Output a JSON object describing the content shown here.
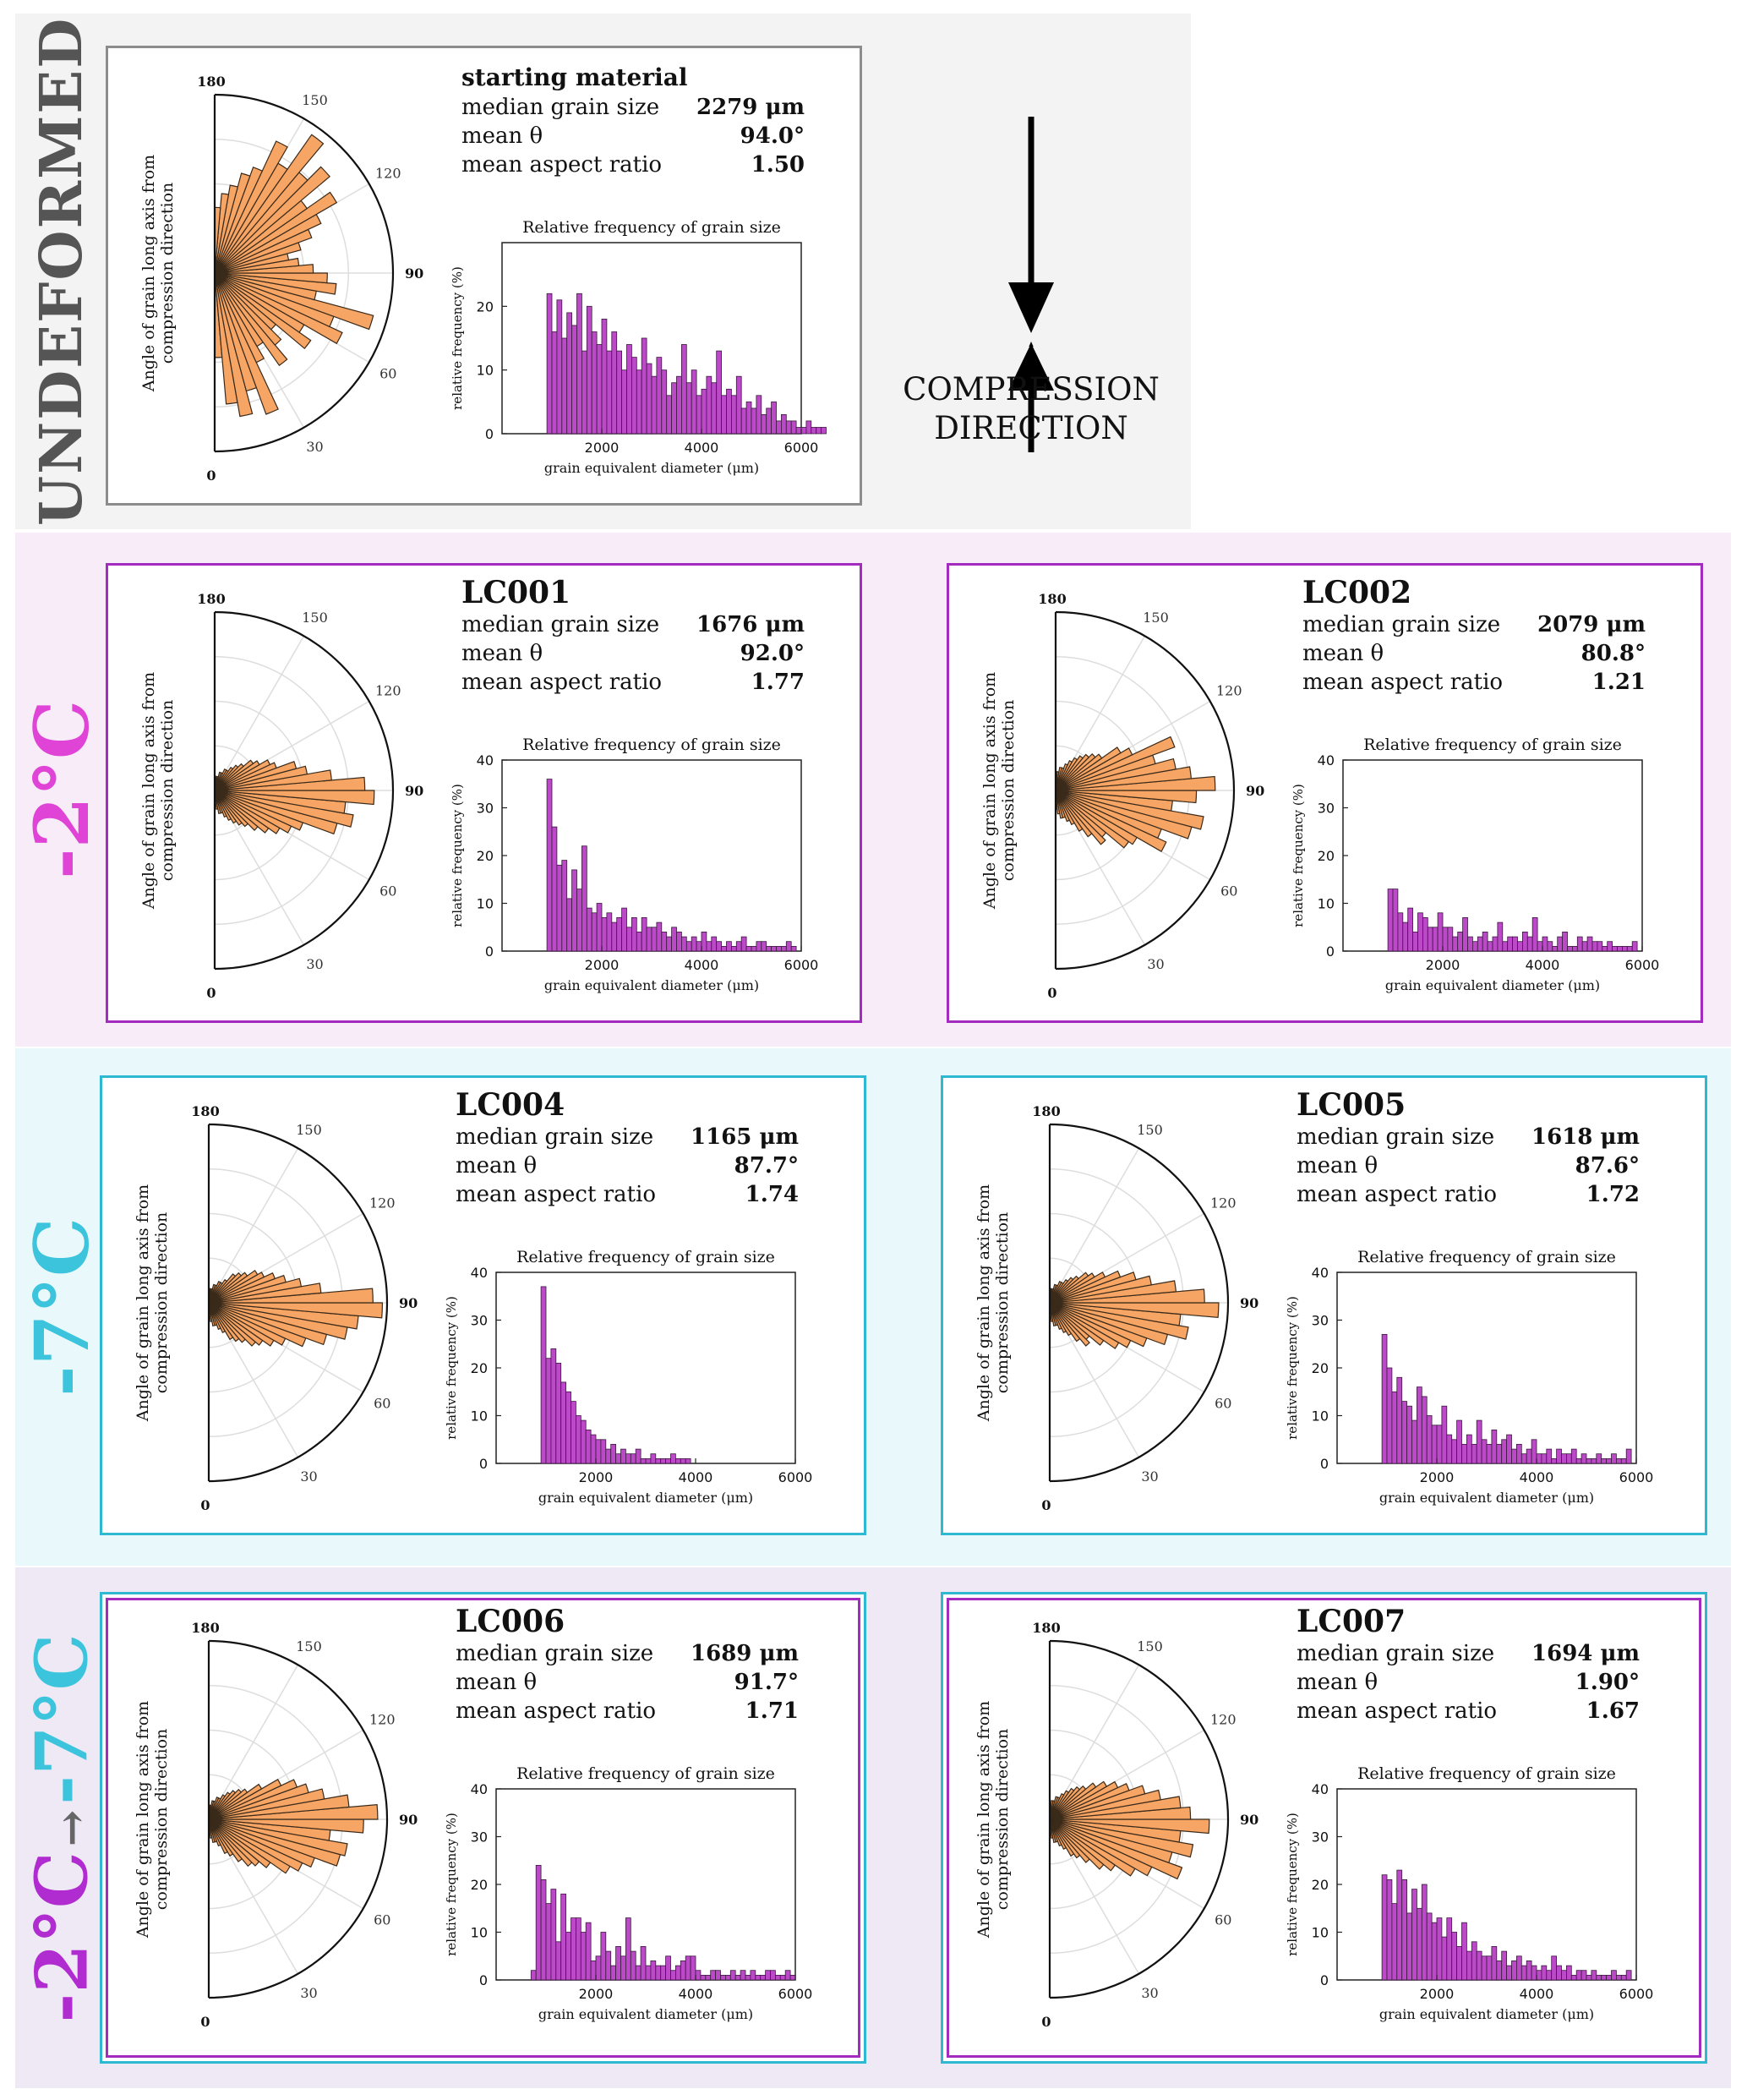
{
  "colors": {
    "rose": "#f6a564",
    "rose_stroke": "#3a2a1a",
    "hist": "#bb49c8",
    "hist_stroke": "#3a1a3d",
    "band_warm": "#f8ecf8",
    "band_cold": "#e9f8fb",
    "band_cycle": "#efe9f6",
    "band_undeformed": "#f3f3f3",
    "magenta": "#a42bbf",
    "cyan": "#2fb8d2",
    "gray": "#8c8c8c"
  },
  "bands": [
    {
      "id": "undeformed",
      "label": "UNDEFORMED"
    },
    {
      "id": "warm",
      "label": "-2°C"
    },
    {
      "id": "cold",
      "label": "-7°C"
    },
    {
      "id": "cycle",
      "label_a": "-2°C",
      "label_arrow": "→",
      "label_b": "-7°C"
    }
  ],
  "compression": {
    "label_line1": "COMPRESSION",
    "label_line2": "DIRECTION"
  },
  "chart_data": [
    {
      "id": "starting",
      "title": "starting material",
      "stats": {
        "median_label": "median grain size",
        "median_value": "2279 μm",
        "theta_label": "mean θ",
        "theta_value": "94.0°",
        "aspect_label": "mean aspect ratio",
        "aspect_value": "1.50"
      },
      "rose": {
        "type": "polar-bar",
        "ylabel_1": "Angle of grain long axis from",
        "ylabel_2": "compression direction",
        "ticks": [
          "0",
          "30",
          "60",
          "90",
          "120",
          "150",
          "180"
        ],
        "max": 0.38,
        "values": [
          0.18,
          0.28,
          0.31,
          0.26,
          0.32,
          0.21,
          0.18,
          0.24,
          0.2,
          0.17,
          0.25,
          0.22,
          0.3,
          0.27,
          0.35,
          0.22,
          0.26,
          0.24,
          0.21,
          0.18,
          0.16,
          0.19,
          0.22,
          0.25,
          0.3,
          0.24,
          0.32,
          0.28,
          0.36,
          0.27,
          0.31,
          0.24,
          0.22,
          0.19,
          0.17,
          0.14
        ]
      },
      "hist": {
        "type": "bar",
        "title": "Relative frequency of grain size",
        "xlabel": "grain equivalent diameter (μm)",
        "ylabel": "relative frequency (%)",
        "xlim": [
          0,
          6000
        ],
        "xticks": [
          2000,
          4000,
          6000
        ],
        "yticks": [
          0,
          10,
          20
        ],
        "ymax": 30,
        "bin_start": 900,
        "bin_width": 100,
        "values": [
          22,
          16,
          21,
          15,
          19,
          17,
          22,
          13,
          20,
          16,
          14,
          18,
          13,
          16,
          13,
          10,
          14,
          12,
          10,
          15,
          11,
          9,
          12,
          10,
          6,
          8,
          9,
          14,
          8,
          10,
          6,
          7,
          9,
          8,
          13,
          6,
          7,
          6,
          9,
          4,
          5,
          4,
          6,
          3,
          4,
          5,
          2,
          3,
          2,
          2,
          1,
          1,
          2,
          1,
          1,
          1
        ]
      }
    },
    {
      "id": "LC001",
      "title": "LC001",
      "stats": {
        "median_label": "median grain size",
        "median_value": "1676 μm",
        "theta_label": "mean θ",
        "theta_value": "92.0°",
        "aspect_label": "mean aspect ratio",
        "aspect_value": "1.77"
      },
      "rose": {
        "type": "polar-bar",
        "ylabel_1": "Angle of grain long axis from",
        "ylabel_2": "compression direction",
        "ticks": [
          "0",
          "30",
          "60",
          "90",
          "120",
          "150",
          "180"
        ],
        "max": 0.38,
        "values": [
          0.03,
          0.04,
          0.05,
          0.05,
          0.06,
          0.07,
          0.08,
          0.09,
          0.1,
          0.12,
          0.14,
          0.16,
          0.18,
          0.2,
          0.27,
          0.3,
          0.28,
          0.34,
          0.32,
          0.25,
          0.2,
          0.18,
          0.14,
          0.13,
          0.11,
          0.1,
          0.08,
          0.07,
          0.06,
          0.05,
          0.05,
          0.04,
          0.04,
          0.03,
          0.03,
          0.03
        ]
      },
      "hist": {
        "type": "bar",
        "title": "Relative frequency of grain size",
        "xlabel": "grain equivalent diameter (μm)",
        "ylabel": "relative frequency (%)",
        "xlim": [
          0,
          6000
        ],
        "xticks": [
          2000,
          4000,
          6000
        ],
        "yticks": [
          0,
          10,
          20,
          30,
          40
        ],
        "ymax": 40,
        "bin_start": 900,
        "bin_width": 100,
        "values": [
          36,
          26,
          18,
          19,
          11,
          17,
          13,
          22,
          9,
          8,
          10,
          7,
          8,
          6,
          7,
          9,
          5,
          7,
          4,
          7,
          5,
          5,
          6,
          4,
          3,
          5,
          4,
          3,
          2,
          3,
          2,
          4,
          2,
          3,
          2,
          1,
          2,
          1,
          2,
          3,
          1,
          1,
          2,
          2,
          1,
          1,
          1,
          1,
          2,
          1
        ]
      }
    },
    {
      "id": "LC002",
      "title": "LC002",
      "stats": {
        "median_label": "median grain size",
        "median_value": "2079 μm",
        "theta_label": "mean θ",
        "theta_value": "80.8°",
        "aspect_label": "mean aspect ratio",
        "aspect_value": "1.21"
      },
      "rose": {
        "type": "polar-bar",
        "ylabel_1": "Angle of grain long axis from",
        "ylabel_2": "compression direction",
        "ticks": [
          "0",
          "30",
          "60",
          "90",
          "120",
          "150",
          "180"
        ],
        "max": 0.38,
        "values": [
          0.04,
          0.05,
          0.06,
          0.06,
          0.07,
          0.08,
          0.1,
          0.12,
          0.15,
          0.14,
          0.19,
          0.2,
          0.26,
          0.24,
          0.3,
          0.32,
          0.25,
          0.3,
          0.34,
          0.29,
          0.26,
          0.22,
          0.27,
          0.18,
          0.16,
          0.12,
          0.11,
          0.1,
          0.09,
          0.08,
          0.07,
          0.06,
          0.05,
          0.05,
          0.04,
          0.04
        ]
      },
      "hist": {
        "type": "bar",
        "title": "Relative frequency of grain size",
        "xlabel": "grain equivalent diameter (μm)",
        "ylabel": "relative frequency (%)",
        "xlim": [
          0,
          6000
        ],
        "xticks": [
          2000,
          4000,
          6000
        ],
        "yticks": [
          0,
          10,
          20,
          30,
          40
        ],
        "ymax": 40,
        "bin_start": 900,
        "bin_width": 100,
        "values": [
          13,
          13,
          8,
          6,
          9,
          4,
          8,
          7,
          5,
          5,
          8,
          5,
          5,
          3,
          4,
          7,
          3,
          2,
          3,
          4,
          2,
          3,
          6,
          2,
          3,
          3,
          2,
          4,
          3,
          7,
          2,
          3,
          2,
          1,
          3,
          4,
          1,
          1,
          3,
          2,
          3,
          2,
          2,
          1,
          2,
          1,
          1,
          1,
          1,
          2
        ]
      }
    },
    {
      "id": "LC004",
      "title": "LC004",
      "stats": {
        "median_label": "median grain size",
        "median_value": "1165 μm",
        "theta_label": "mean θ",
        "theta_value": "87.7°",
        "aspect_label": "mean aspect ratio",
        "aspect_value": "1.74"
      },
      "rose": {
        "type": "polar-bar",
        "ylabel_1": "Angle of grain long axis from",
        "ylabel_2": "compression direction",
        "ticks": [
          "0",
          "30",
          "60",
          "90",
          "120",
          "150",
          "180"
        ],
        "max": 0.38,
        "values": [
          0.03,
          0.04,
          0.05,
          0.05,
          0.06,
          0.07,
          0.09,
          0.1,
          0.11,
          0.13,
          0.14,
          0.16,
          0.18,
          0.22,
          0.26,
          0.3,
          0.32,
          0.37,
          0.35,
          0.24,
          0.2,
          0.17,
          0.15,
          0.13,
          0.12,
          0.1,
          0.09,
          0.08,
          0.06,
          0.05,
          0.05,
          0.04,
          0.04,
          0.03,
          0.03,
          0.03
        ]
      },
      "hist": {
        "type": "bar",
        "title": "Relative frequency of grain size",
        "xlabel": "grain equivalent diameter (μm)",
        "ylabel": "relative frequency (%)",
        "xlim": [
          0,
          6000
        ],
        "xticks": [
          2000,
          4000,
          6000
        ],
        "yticks": [
          0,
          10,
          20,
          30,
          40
        ],
        "ymax": 40,
        "bin_start": 900,
        "bin_width": 100,
        "values": [
          37,
          22,
          24,
          21,
          17,
          15,
          13,
          10,
          9,
          7,
          6,
          5,
          5,
          3,
          4,
          2,
          3,
          2,
          2,
          3,
          1,
          1,
          2,
          1,
          1,
          1,
          2,
          1,
          1,
          1
        ]
      }
    },
    {
      "id": "LC005",
      "title": "LC005",
      "stats": {
        "median_label": "median grain size",
        "median_value": "1618 μm",
        "theta_label": "mean θ",
        "theta_value": "87.6°",
        "aspect_label": "mean aspect ratio",
        "aspect_value": "1.72"
      },
      "rose": {
        "type": "polar-bar",
        "ylabel_1": "Angle of grain long axis from",
        "ylabel_2": "compression direction",
        "ticks": [
          "0",
          "30",
          "60",
          "90",
          "120",
          "150",
          "180"
        ],
        "max": 0.38,
        "values": [
          0.03,
          0.04,
          0.05,
          0.05,
          0.06,
          0.07,
          0.08,
          0.1,
          0.12,
          0.11,
          0.14,
          0.17,
          0.19,
          0.22,
          0.26,
          0.3,
          0.28,
          0.36,
          0.33,
          0.27,
          0.22,
          0.19,
          0.16,
          0.13,
          0.11,
          0.1,
          0.08,
          0.07,
          0.06,
          0.05,
          0.05,
          0.04,
          0.04,
          0.03,
          0.03,
          0.03
        ]
      },
      "hist": {
        "type": "bar",
        "title": "Relative frequency of grain size",
        "xlabel": "grain equivalent diameter (μm)",
        "ylabel": "relative frequency (%)",
        "xlim": [
          0,
          6000
        ],
        "xticks": [
          2000,
          4000,
          6000
        ],
        "yticks": [
          0,
          10,
          20,
          30,
          40
        ],
        "ymax": 40,
        "bin_start": 900,
        "bin_width": 100,
        "values": [
          27,
          20,
          15,
          18,
          13,
          12,
          9,
          16,
          14,
          10,
          8,
          8,
          12,
          6,
          5,
          9,
          4,
          6,
          4,
          9,
          5,
          4,
          7,
          4,
          5,
          6,
          3,
          4,
          2,
          3,
          5,
          2,
          2,
          3,
          1,
          3,
          2,
          2,
          3,
          1,
          2,
          1,
          1,
          2,
          1,
          1,
          2,
          1,
          1,
          3
        ]
      }
    },
    {
      "id": "LC006",
      "title": "LC006",
      "stats": {
        "median_label": "median grain size",
        "median_value": "1689 μm",
        "theta_label": "mean θ",
        "theta_value": "91.7°",
        "aspect_label": "mean aspect ratio",
        "aspect_value": "1.71"
      },
      "rose": {
        "type": "polar-bar",
        "ylabel_1": "Angle of grain long axis from",
        "ylabel_2": "compression direction",
        "ticks": [
          "0",
          "30",
          "60",
          "90",
          "120",
          "150",
          "180"
        ],
        "max": 0.38,
        "values": [
          0.03,
          0.04,
          0.05,
          0.05,
          0.06,
          0.08,
          0.09,
          0.11,
          0.13,
          0.14,
          0.16,
          0.2,
          0.22,
          0.24,
          0.29,
          0.3,
          0.26,
          0.33,
          0.36,
          0.3,
          0.25,
          0.22,
          0.2,
          0.17,
          0.13,
          0.1,
          0.09,
          0.08,
          0.07,
          0.06,
          0.05,
          0.05,
          0.04,
          0.04,
          0.03,
          0.03
        ]
      },
      "hist": {
        "type": "bar",
        "title": "Relative frequency of grain size",
        "xlabel": "grain equivalent diameter (μm)",
        "ylabel": "relative frequency (%)",
        "xlim": [
          0,
          6000
        ],
        "xticks": [
          2000,
          4000,
          6000
        ],
        "yticks": [
          0,
          10,
          20,
          30,
          40
        ],
        "ymax": 40,
        "bin_start": 700,
        "bin_width": 100,
        "values": [
          2,
          24,
          21,
          16,
          19,
          8,
          18,
          10,
          13,
          13,
          10,
          12,
          4,
          5,
          10,
          6,
          3,
          7,
          5,
          13,
          6,
          3,
          7,
          3,
          4,
          3,
          3,
          5,
          2,
          3,
          4,
          5,
          5,
          2,
          1,
          1,
          2,
          2,
          1,
          1,
          2,
          1,
          2,
          1,
          2,
          1,
          1,
          2,
          2,
          1,
          1,
          2,
          1
        ]
      }
    },
    {
      "id": "LC007",
      "title": "LC007",
      "stats": {
        "median_label": "median grain size",
        "median_value": "1694 μm",
        "theta_label": "mean θ",
        "theta_value": "1.90°",
        "aspect_label": "mean aspect ratio",
        "aspect_value": "1.67"
      },
      "rose": {
        "type": "polar-bar",
        "ylabel_1": "Angle of grain long axis from",
        "ylabel_2": "compression direction",
        "ticks": [
          "0",
          "30",
          "60",
          "90",
          "120",
          "150",
          "180"
        ],
        "max": 0.38,
        "values": [
          0.03,
          0.04,
          0.05,
          0.05,
          0.06,
          0.07,
          0.09,
          0.1,
          0.12,
          0.15,
          0.17,
          0.21,
          0.24,
          0.3,
          0.27,
          0.31,
          0.28,
          0.34,
          0.3,
          0.28,
          0.24,
          0.21,
          0.18,
          0.16,
          0.14,
          0.12,
          0.1,
          0.09,
          0.08,
          0.07,
          0.06,
          0.05,
          0.05,
          0.04,
          0.04,
          0.03
        ]
      },
      "hist": {
        "type": "bar",
        "title": "Relative frequency of grain size",
        "xlabel": "grain equivalent diameter (μm)",
        "ylabel": "relative frequency (%)",
        "xlim": [
          0,
          6000
        ],
        "xticks": [
          2000,
          4000,
          6000
        ],
        "yticks": [
          0,
          10,
          20,
          30,
          40
        ],
        "ymax": 40,
        "bin_start": 900,
        "bin_width": 100,
        "values": [
          22,
          21,
          16,
          23,
          21,
          14,
          19,
          15,
          20,
          14,
          12,
          13,
          9,
          13,
          10,
          7,
          12,
          6,
          8,
          6,
          5,
          5,
          7,
          4,
          6,
          3,
          4,
          5,
          3,
          4,
          3,
          2,
          3,
          2,
          5,
          3,
          2,
          3,
          1,
          2,
          2,
          1,
          2,
          1,
          1,
          1,
          2,
          1,
          1,
          2
        ]
      }
    }
  ]
}
